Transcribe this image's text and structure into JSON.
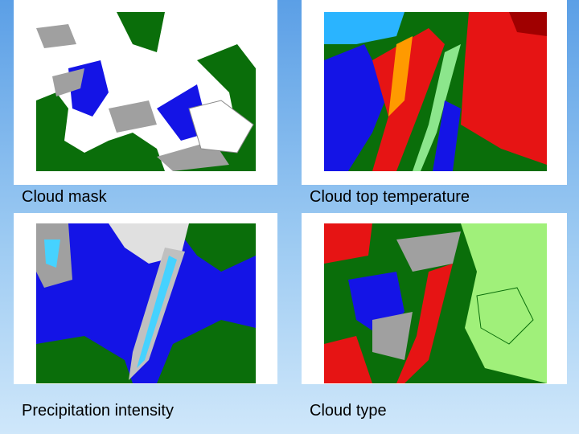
{
  "panels": [
    {
      "caption": "Cloud mask"
    },
    {
      "caption": "Cloud top temperature"
    },
    {
      "caption": "Precipitation intensity"
    },
    {
      "caption": "Cloud type"
    }
  ]
}
